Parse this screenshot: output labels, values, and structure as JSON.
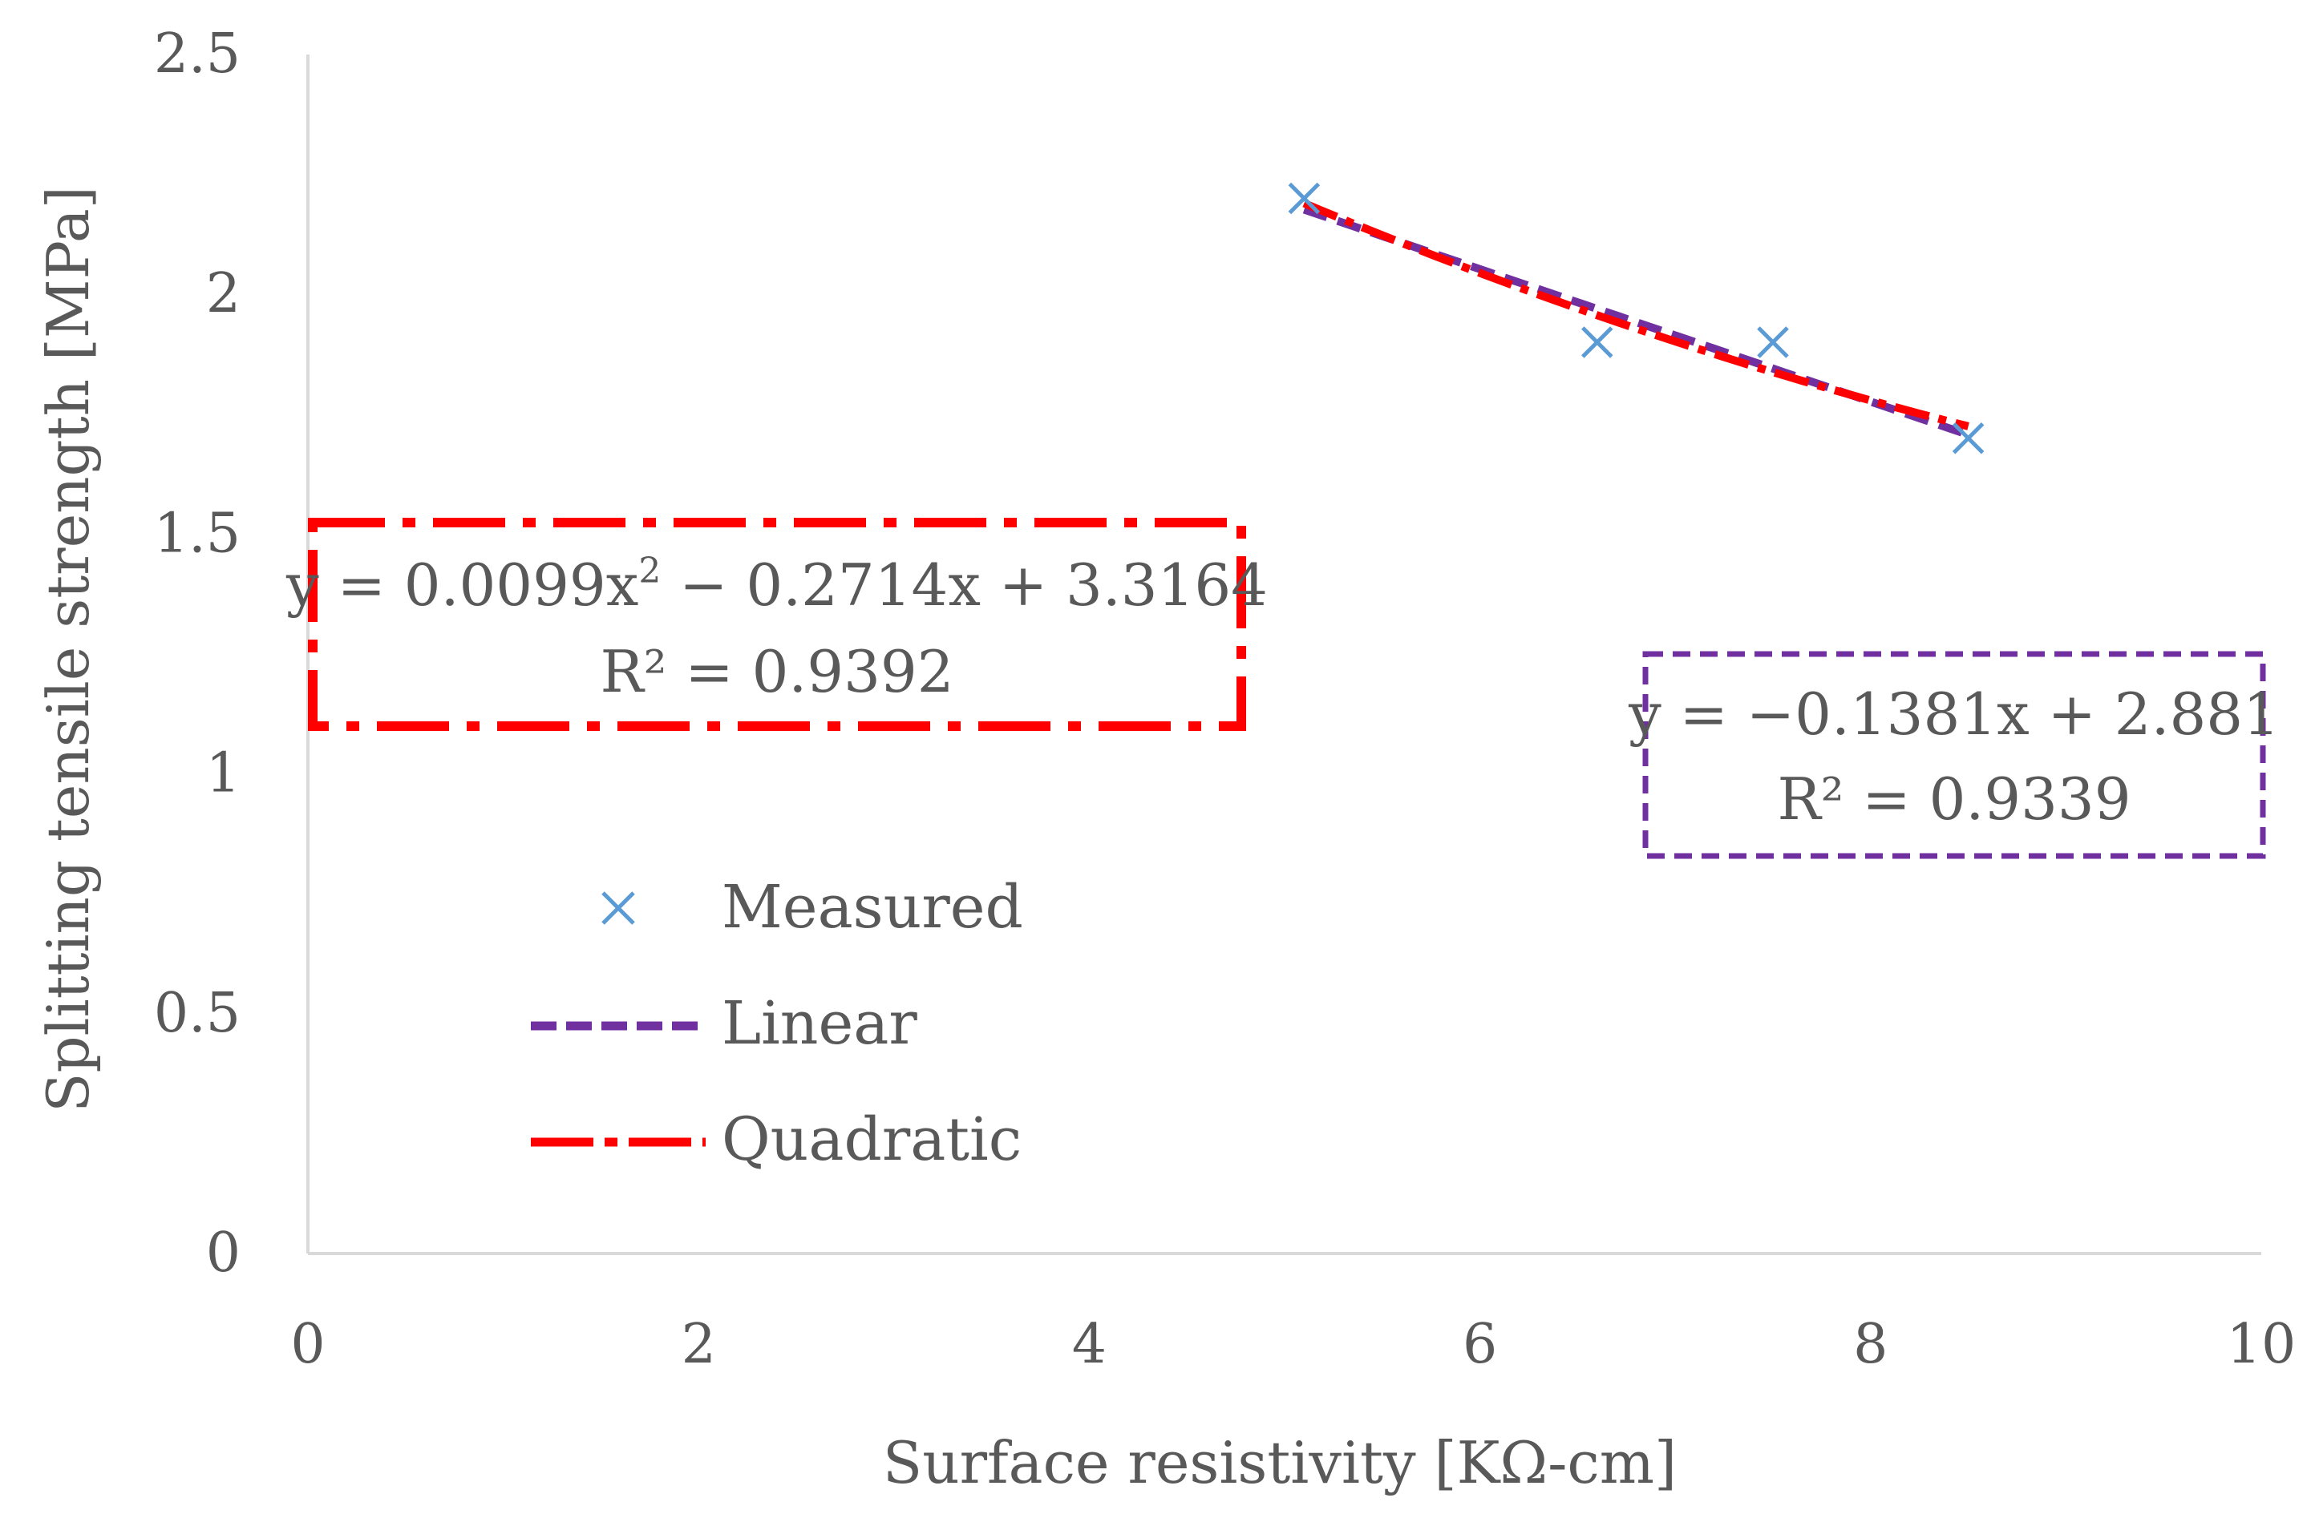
{
  "chart_data": {
    "type": "scatter",
    "title": "",
    "xlabel": "Surface resistivity [KΩ-cm]",
    "ylabel": "Splitting tensile strength [MPa]",
    "xlim": [
      0,
      10
    ],
    "ylim": [
      0,
      2.5
    ],
    "xticks": [
      "0",
      "2",
      "4",
      "6",
      "8",
      "10"
    ],
    "yticks": [
      "0",
      "0.5",
      "1",
      "1.5",
      "2",
      "2.5"
    ],
    "grid": false,
    "legend_position": "left-center",
    "series": [
      {
        "name": "Measured",
        "kind": "markers",
        "marker": "x",
        "color": "#5b9bd5",
        "points": [
          [
            5.1,
            2.2
          ],
          [
            6.6,
            1.9
          ],
          [
            7.5,
            1.9
          ],
          [
            8.5,
            1.7
          ]
        ]
      },
      {
        "name": "Linear",
        "kind": "fit",
        "fit": "linear",
        "coefficients": {
          "a": -0.1381,
          "b": 2.881
        },
        "x_range": [
          5.1,
          8.5
        ],
        "color": "#7030a0",
        "dash": "dashed"
      },
      {
        "name": "Quadratic",
        "kind": "fit",
        "fit": "quadratic",
        "coefficients": {
          "a": 0.0099,
          "b": -0.2714,
          "c": 3.3164
        },
        "x_range": [
          5.1,
          8.5
        ],
        "color": "#ff0000",
        "dash": "dash-dot"
      }
    ],
    "annotations": {
      "quadratic": {
        "equation_prefix": "y = 0.0099x",
        "equation_sup": "2",
        "equation_suffix": " − 0.2714x + 3.3164",
        "r2": "R² = 0.9392",
        "color": "#ff0000"
      },
      "linear": {
        "equation": "y = −0.1381x + 2.881",
        "r2": "R² = 0.9339",
        "color": "#7030a0"
      }
    }
  }
}
